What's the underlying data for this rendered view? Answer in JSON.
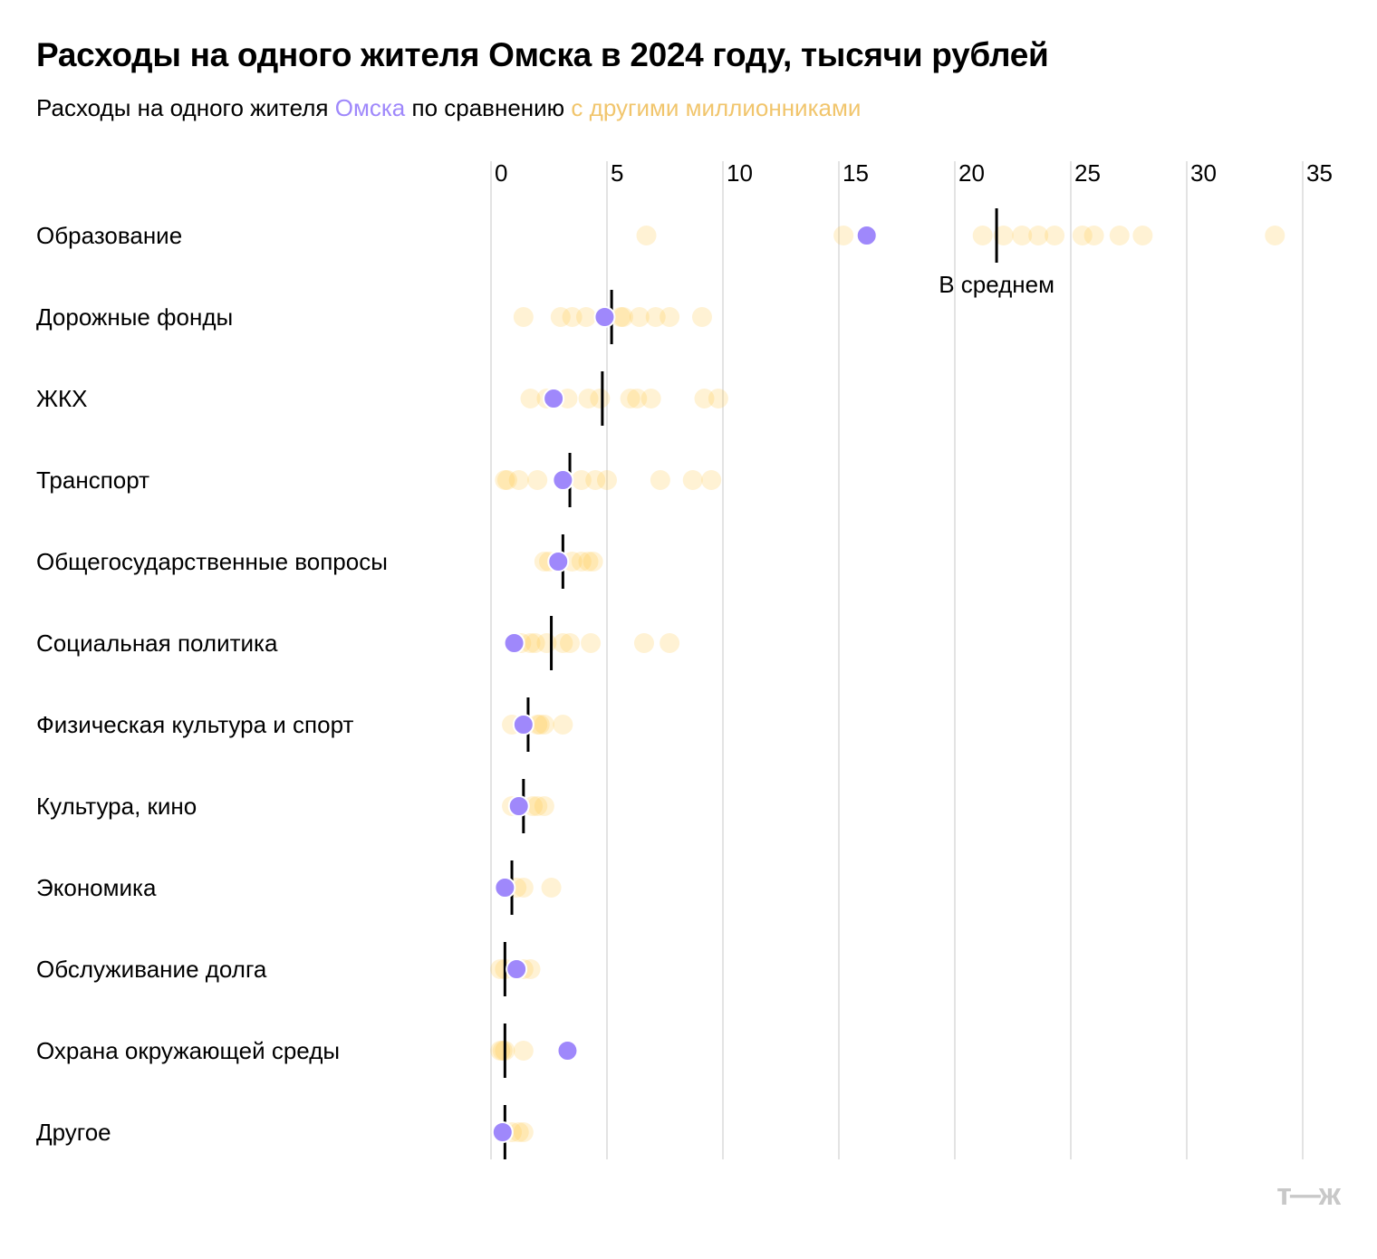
{
  "chart_data": {
    "type": "scatter",
    "title": "Расходы на одного жителя Омска в 2024 году, тысячи рублей",
    "subtitle_parts": [
      "Расходы на одного жителя ",
      "Омска",
      " по сравнению ",
      "с другими миллионниками"
    ],
    "xlim": [
      0,
      35
    ],
    "xticks": [
      "0",
      "5",
      "10",
      "15",
      "20",
      "25",
      "30",
      "35"
    ],
    "grid": true,
    "mean_label": "В среднем",
    "colors": {
      "omsk": "#9f88fb",
      "others": "#ffc53d",
      "mean": "#000000",
      "grid": "#e3e3e3"
    },
    "categories": [
      {
        "label": "Образование",
        "omsk": 16.2,
        "mean": 21.8,
        "others": [
          6.7,
          15.2,
          21.2,
          22.1,
          22.9,
          23.6,
          24.3,
          25.5,
          26.0,
          27.1,
          28.1,
          33.8
        ]
      },
      {
        "label": "Дорожные фонды",
        "omsk": 4.9,
        "mean": 5.2,
        "others": [
          1.4,
          3.0,
          3.5,
          4.1,
          5.6,
          5.7,
          6.4,
          7.1,
          7.7,
          9.1
        ]
      },
      {
        "label": "ЖКХ",
        "omsk": 2.7,
        "mean": 4.8,
        "others": [
          1.7,
          2.4,
          3.3,
          4.2,
          4.7,
          6.0,
          6.3,
          6.9,
          9.2,
          9.8
        ]
      },
      {
        "label": "Транспорт",
        "omsk": 3.1,
        "mean": 3.4,
        "others": [
          0.6,
          0.7,
          1.2,
          2.0,
          3.9,
          4.5,
          5.0,
          7.3,
          8.7,
          9.5
        ]
      },
      {
        "label": "Общегосударственные вопросы",
        "omsk": 2.9,
        "mean": 3.1,
        "others": [
          2.3,
          2.5,
          3.5,
          3.9,
          4.2,
          4.4
        ]
      },
      {
        "label": "Социальная политика",
        "omsk": 1.0,
        "mean": 2.6,
        "others": [
          1.3,
          1.7,
          1.9,
          2.4,
          3.1,
          3.4,
          4.3,
          6.6,
          7.7
        ]
      },
      {
        "label": "Физическая культура и спорт",
        "omsk": 1.4,
        "mean": 1.6,
        "others": [
          0.9,
          2.0,
          2.1,
          2.3,
          3.1
        ]
      },
      {
        "label": "Культура, кино",
        "omsk": 1.2,
        "mean": 1.4,
        "others": [
          0.9,
          1.8,
          2.0,
          2.3
        ]
      },
      {
        "label": "Экономика",
        "omsk": 0.6,
        "mean": 0.9,
        "others": [
          1.1,
          1.4,
          2.6
        ]
      },
      {
        "label": "Обслуживание долга",
        "omsk": 1.1,
        "mean": 0.6,
        "others": [
          0.4,
          0.6,
          1.4,
          1.7
        ]
      },
      {
        "label": "Охрана окружающей среды",
        "omsk": 3.3,
        "mean": 0.6,
        "others": [
          0.4,
          0.5,
          0.6,
          1.4
        ]
      },
      {
        "label": "Другое",
        "omsk": 0.5,
        "mean": 0.6,
        "others": [
          0.9,
          1.2,
          1.4
        ]
      }
    ]
  },
  "logo": "т—ж"
}
